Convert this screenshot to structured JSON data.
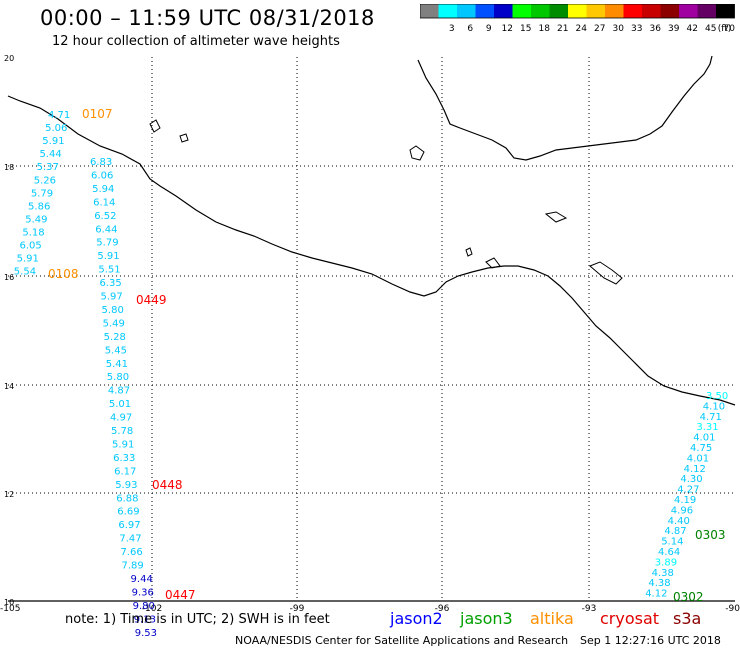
{
  "header": {
    "title": "00:00 – 11:59 UTC 08/31/2018",
    "subtitle": "12 hour collection of altimeter wave heights"
  },
  "colorbar": {
    "unit": "(ft)",
    "bins": [
      {
        "label": "",
        "color": "#808080"
      },
      {
        "label": "3",
        "color": "#00ffff"
      },
      {
        "label": "6",
        "color": "#00c8ff"
      },
      {
        "label": "9",
        "color": "#0050ff"
      },
      {
        "label": "12",
        "color": "#0000c8"
      },
      {
        "label": "15",
        "color": "#00ff00"
      },
      {
        "label": "18",
        "color": "#00c800"
      },
      {
        "label": "21",
        "color": "#008c00"
      },
      {
        "label": "24",
        "color": "#ffff00"
      },
      {
        "label": "27",
        "color": "#ffc800"
      },
      {
        "label": "30",
        "color": "#ff8c00"
      },
      {
        "label": "33",
        "color": "#ff0000"
      },
      {
        "label": "36",
        "color": "#c80000"
      },
      {
        "label": "39",
        "color": "#8c0000"
      },
      {
        "label": "42",
        "color": "#a000a0"
      },
      {
        "label": "45",
        "color": "#640064"
      },
      {
        "label": "70",
        "color": "#000000"
      }
    ]
  },
  "map": {
    "lat_labels": [
      "20",
      "18",
      "16",
      "14",
      "12",
      "10"
    ],
    "lon_labels": [
      "-105",
      "-102",
      "-99",
      "-96",
      "-93",
      "-90"
    ],
    "coastline_color": "#000000",
    "gridline_color": "#000000"
  },
  "passes": [
    {
      "satellite": "jason3",
      "time_label": "0107",
      "time_color": "#ff9000"
    },
    {
      "satellite": "jason3",
      "time_label": "0108",
      "time_color": "#ff9000"
    },
    {
      "satellite": "cryosat",
      "time_label": "0449",
      "time_color": "#ff0000"
    },
    {
      "satellite": "cryosat",
      "time_label": "0448",
      "time_color": "#ff0000"
    },
    {
      "satellite": "cryosat",
      "time_label": "0447",
      "time_color": "#ff0000"
    },
    {
      "satellite": "jason3",
      "time_label": "0303",
      "time_color": "#008000"
    },
    {
      "satellite": "jason3",
      "time_label": "0302",
      "time_color": "#008000"
    }
  ],
  "swh_track_a": {
    "values": [
      "4.71",
      "5.06",
      "5.91",
      "5.44",
      "5.37",
      "5.26",
      "5.79",
      "5.86",
      "5.49",
      "5.18",
      "6.05",
      "5.91",
      "5.54"
    ],
    "colors": [
      "#00c8ff",
      "#00c8ff",
      "#00c8ff",
      "#00c8ff",
      "#00c8ff",
      "#00c8ff",
      "#00c8ff",
      "#00c8ff",
      "#00c8ff",
      "#00c8ff",
      "#00c8ff",
      "#00c8ff",
      "#00c8ff"
    ]
  },
  "swh_track_b": {
    "values": [
      "6.83",
      "6.06",
      "5.94",
      "6.14",
      "6.52",
      "6.44",
      "5.79",
      "5.91",
      "5.51",
      "6.35",
      "5.97",
      "5.80",
      "5.49",
      "5.28",
      "5.45",
      "5.41",
      "5.80",
      "4.87",
      "5.01",
      "4.97",
      "5.78",
      "5.91",
      "6.33",
      "6.17",
      "5.93",
      "6.88",
      "6.69",
      "6.97",
      "7.47",
      "7.66",
      "7.89",
      "9.44",
      "9.36",
      "9.80",
      "9.13",
      "9.53"
    ],
    "colors": [
      "#00c8ff",
      "#00c8ff",
      "#00c8ff",
      "#00c8ff",
      "#00c8ff",
      "#00c8ff",
      "#00c8ff",
      "#00c8ff",
      "#00c8ff",
      "#00c8ff",
      "#00c8ff",
      "#00c8ff",
      "#00c8ff",
      "#00c8ff",
      "#00c8ff",
      "#00c8ff",
      "#00c8ff",
      "#00c8ff",
      "#00c8ff",
      "#00c8ff",
      "#00c8ff",
      "#00c8ff",
      "#00c8ff",
      "#00c8ff",
      "#00c8ff",
      "#00c8ff",
      "#00c8ff",
      "#00c8ff",
      "#00c8ff",
      "#00c8ff",
      "#00c8ff",
      "#0000c8",
      "#0000c8",
      "#0000c8",
      "#0000c8",
      "#0000c8"
    ]
  },
  "swh_track_c": {
    "values": [
      "3.50",
      "4.10",
      "4.71",
      "3.31",
      "4.01",
      "4.75",
      "4.01",
      "4.12",
      "4.30",
      "4.27",
      "4.19",
      "4.96",
      "4.40",
      "4.87",
      "5.14",
      "4.64",
      "3.89",
      "4.38",
      "4.38",
      "4.12"
    ],
    "colors": [
      "#00ffff",
      "#00c8ff",
      "#00c8ff",
      "#00ffff",
      "#00c8ff",
      "#00c8ff",
      "#00c8ff",
      "#00c8ff",
      "#00c8ff",
      "#00c8ff",
      "#00c8ff",
      "#00c8ff",
      "#00c8ff",
      "#00c8ff",
      "#00c8ff",
      "#00c8ff",
      "#00ffff",
      "#00c8ff",
      "#00c8ff",
      "#00c8ff"
    ]
  },
  "footer": {
    "note": "note:  1) Time is in UTC;  2) SWH is in feet",
    "legend": [
      {
        "name": "jason2",
        "color": "#0000ff"
      },
      {
        "name": "jason3",
        "color": "#00a000"
      },
      {
        "name": "altika",
        "color": "#ff9000"
      },
      {
        "name": "cryosat",
        "color": "#e00000"
      },
      {
        "name": "s3a",
        "color": "#8b0000"
      }
    ],
    "credit": "NOAA/NESDIS Center for Satellite Applications and Research",
    "timestamp": "Sep  1 12:27:16 UTC 2018"
  }
}
